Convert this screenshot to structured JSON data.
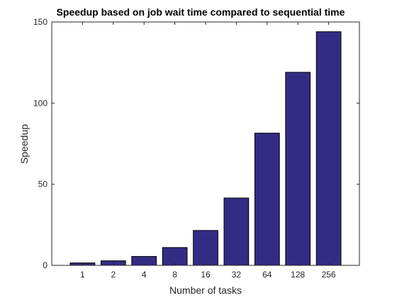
{
  "chart_data": {
    "type": "bar",
    "title": "Speedup based on job wait time compared to sequential time",
    "xlabel": "Number of tasks",
    "ylabel": "Speedup",
    "categories": [
      "1",
      "2",
      "4",
      "8",
      "16",
      "32",
      "64",
      "128",
      "256"
    ],
    "values": [
      1.5,
      2.8,
      5.5,
      11,
      21.5,
      41.5,
      81.5,
      119,
      144
    ],
    "ylim": [
      0,
      150
    ],
    "yticks": [
      0,
      50,
      100,
      150
    ],
    "grid": false,
    "bar_color": "#342c84",
    "bar_edge_color": "#000000"
  }
}
